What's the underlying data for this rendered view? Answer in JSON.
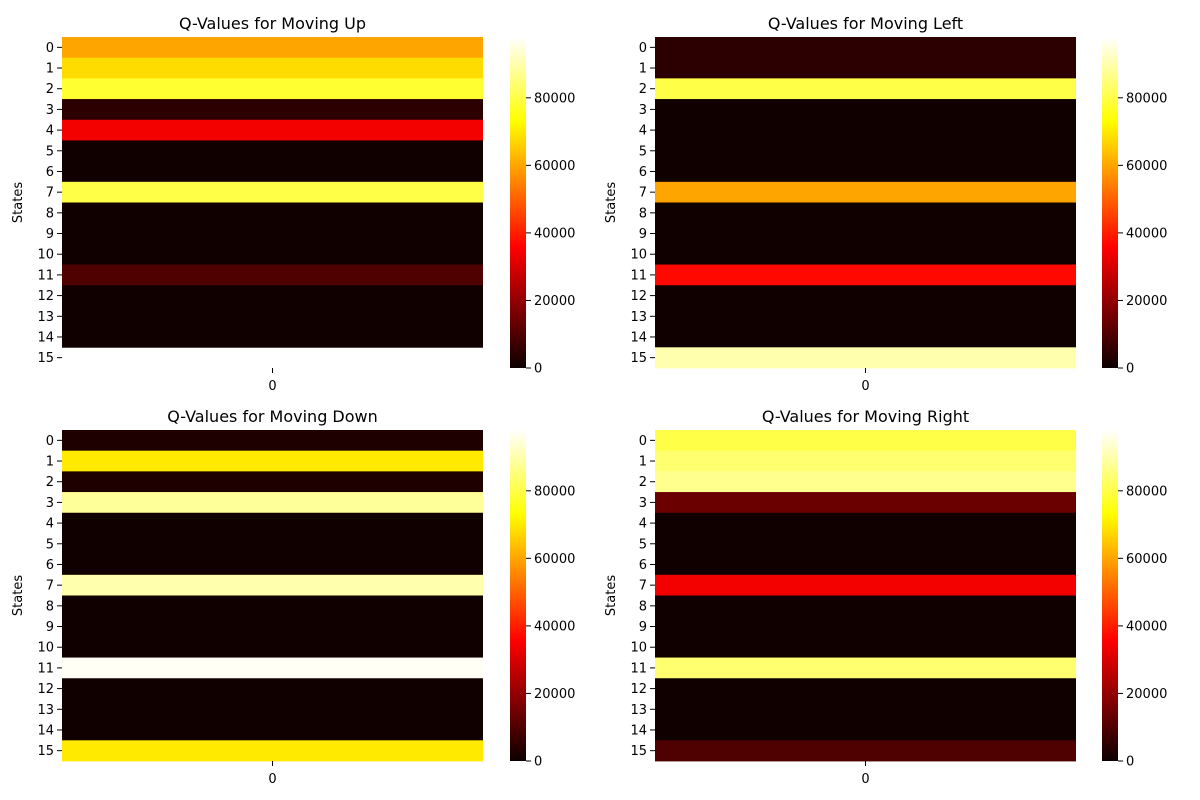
{
  "chart_data": [
    {
      "type": "heatmap",
      "title": "Q-Values for Moving Up",
      "ylabel": "States",
      "x_categories": [
        "0"
      ],
      "y_categories": [
        "0",
        "1",
        "2",
        "3",
        "4",
        "5",
        "6",
        "7",
        "8",
        "9",
        "10",
        "11",
        "12",
        "13",
        "14",
        "15"
      ],
      "values": [
        60000,
        68000,
        78000,
        5000,
        34000,
        1000,
        1000,
        80000,
        1000,
        1000,
        1000,
        10000,
        1000,
        1000,
        1000,
        null
      ],
      "colorbar": {
        "min": 0,
        "max": 98000,
        "ticks": [
          0,
          20000,
          40000,
          60000,
          80000
        ],
        "colormap": "hot"
      }
    },
    {
      "type": "heatmap",
      "title": "Q-Values for Moving Left",
      "ylabel": "States",
      "x_categories": [
        "0"
      ],
      "y_categories": [
        "0",
        "1",
        "2",
        "3",
        "4",
        "5",
        "6",
        "7",
        "8",
        "9",
        "10",
        "11",
        "12",
        "13",
        "14",
        "15"
      ],
      "values": [
        5000,
        5000,
        80000,
        1000,
        1000,
        1000,
        1000,
        60000,
        1000,
        1000,
        1000,
        37000,
        1000,
        1000,
        1000,
        90000
      ],
      "colorbar": {
        "min": 0,
        "max": 98000,
        "ticks": [
          0,
          20000,
          40000,
          60000,
          80000
        ],
        "colormap": "hot"
      }
    },
    {
      "type": "heatmap",
      "title": "Q-Values for Moving Down",
      "ylabel": "States",
      "x_categories": [
        "0"
      ],
      "y_categories": [
        "0",
        "1",
        "2",
        "3",
        "4",
        "5",
        "6",
        "7",
        "8",
        "9",
        "10",
        "11",
        "12",
        "13",
        "14",
        "15"
      ],
      "values": [
        3000,
        70000,
        3000,
        88000,
        1000,
        1000,
        1000,
        90000,
        1000,
        1000,
        1000,
        97000,
        1000,
        1000,
        1000,
        70000
      ],
      "colorbar": {
        "min": 0,
        "max": 98000,
        "ticks": [
          0,
          20000,
          40000,
          60000,
          80000
        ],
        "colormap": "hot"
      }
    },
    {
      "type": "heatmap",
      "title": "Q-Values for Moving Right",
      "ylabel": "States",
      "x_categories": [
        "0"
      ],
      "y_categories": [
        "0",
        "1",
        "2",
        "3",
        "4",
        "5",
        "6",
        "7",
        "8",
        "9",
        "10",
        "11",
        "12",
        "13",
        "14",
        "15"
      ],
      "values": [
        80000,
        84000,
        87000,
        14000,
        1000,
        1000,
        1000,
        34000,
        1000,
        1000,
        1000,
        84000,
        1000,
        1000,
        1000,
        10000
      ],
      "colorbar": {
        "min": 0,
        "max": 98000,
        "ticks": [
          0,
          20000,
          40000,
          60000,
          80000
        ],
        "colormap": "hot"
      }
    }
  ]
}
